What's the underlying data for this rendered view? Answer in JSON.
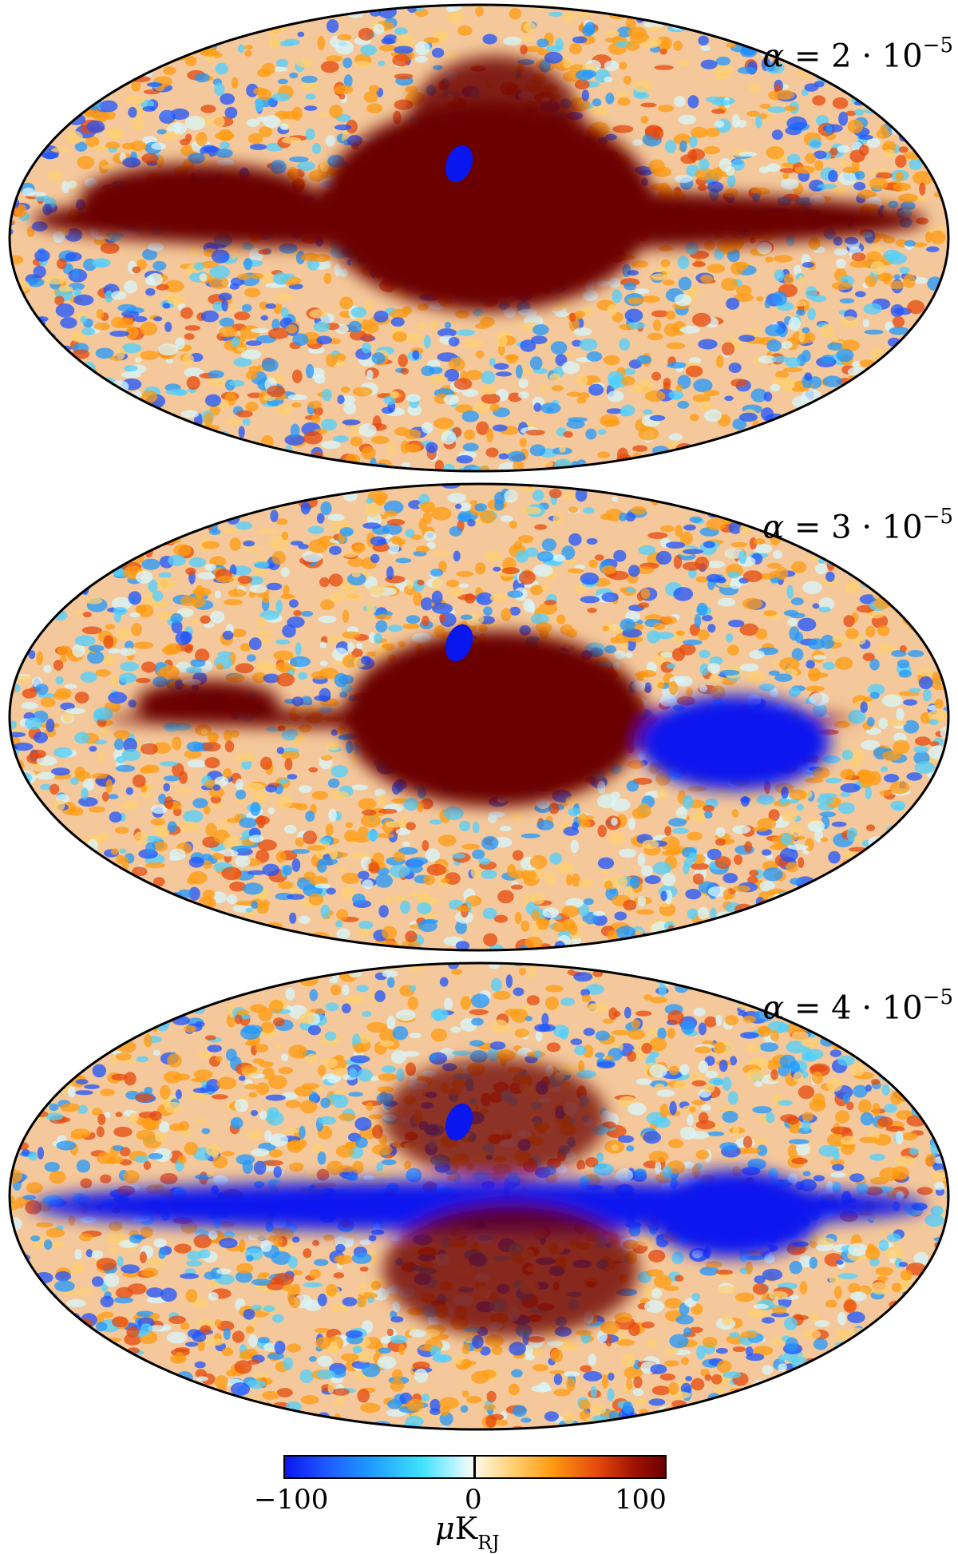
{
  "panels": [
    {
      "alpha_symbol": "α",
      "alpha_equals": " = ",
      "alpha_mantissa": "2",
      "alpha_dot": " · 10",
      "alpha_exponent": "−5",
      "galactic_band": "positive"
    },
    {
      "alpha_symbol": "α",
      "alpha_equals": " = ",
      "alpha_mantissa": "3",
      "alpha_dot": " · 10",
      "alpha_exponent": "−5",
      "galactic_band": "mixed"
    },
    {
      "alpha_symbol": "α",
      "alpha_equals": " = ",
      "alpha_mantissa": "4",
      "alpha_dot": " · 10",
      "alpha_exponent": "−5",
      "galactic_band": "negative"
    }
  ],
  "colorbar": {
    "min_label": "−100",
    "zero_label": "0",
    "max_label": "100",
    "unit_symbol": "μ",
    "unit_main": "K",
    "unit_sub": "RJ",
    "colors": [
      "#0a16ee",
      "#1f98ff",
      "#d8f8ff",
      "#ff9c12",
      "#6b0000"
    ]
  }
}
